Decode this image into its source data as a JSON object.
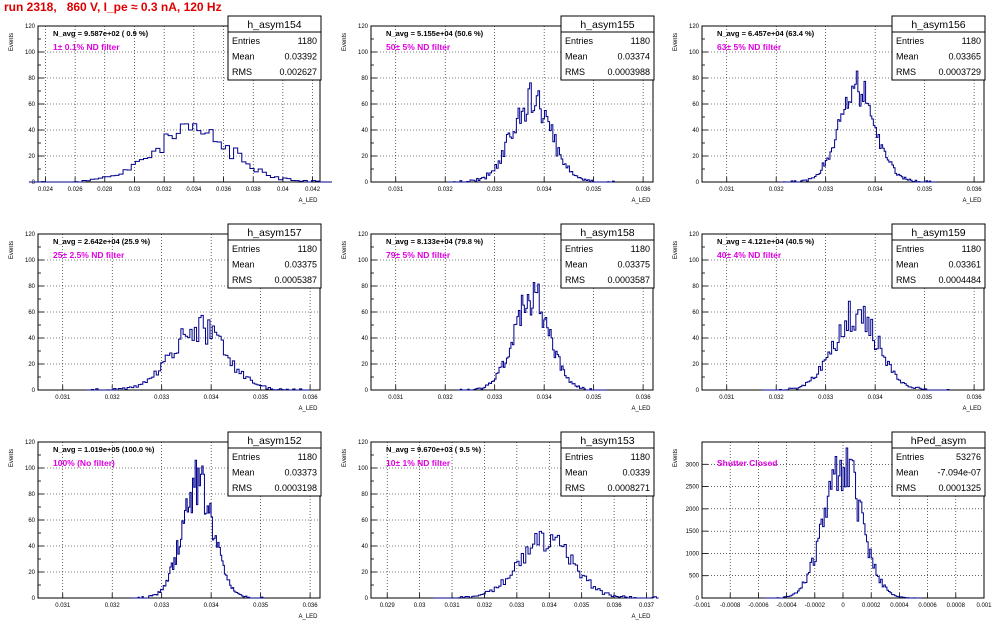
{
  "page": {
    "title": "run 2318,   860 V, I_pe ≈ 0.3 nA, 120 Hz"
  },
  "colors": {
    "hist": "#00008b",
    "title": "#e00000",
    "label": "#e000e0",
    "grid": "#000000"
  },
  "chart_data": [
    {
      "type": "bar",
      "name": "h_asym154",
      "annotation": "N_avg = 9.587e+02 ( 0.9 %)",
      "label": "1± 0.1% ND filter",
      "stats": [
        [
          "Entries",
          "1180"
        ],
        [
          "Mean",
          "0.03392"
        ],
        [
          "RMS",
          "0.002627"
        ]
      ],
      "xlim": [
        0.0235,
        0.0425
      ],
      "ylim": [
        0,
        120
      ],
      "xticks": [
        0.024,
        0.026,
        0.028,
        0.03,
        0.032,
        0.034,
        0.036,
        0.038,
        0.04,
        0.042
      ],
      "xticklabels": [
        "0.024",
        "0.026",
        "0.028",
        "0.03",
        "0.032",
        "0.034",
        "0.036",
        "0.038",
        "0.04",
        "0.042"
      ],
      "yticks": [
        0,
        10,
        20,
        30,
        40,
        50,
        60,
        70,
        80,
        90,
        100,
        110,
        120
      ],
      "yticklabels": [
        "0",
        "",
        "20",
        "",
        "40",
        "",
        "60",
        "",
        "80",
        "",
        "100",
        "",
        "120"
      ],
      "ylabel": "Events",
      "xlabel": "A_LED",
      "grid": true,
      "gen": {
        "mean": 0.03392,
        "rms": 0.002627,
        "peak": 42,
        "bins": 80
      }
    },
    {
      "type": "bar",
      "name": "h_asym155",
      "annotation": "N_avg = 5.155e+04 (50.6 %)",
      "label": "50± 5% ND filter",
      "stats": [
        [
          "Entries",
          "1180"
        ],
        [
          "Mean",
          "0.03374"
        ],
        [
          "RMS",
          "0.0003988"
        ]
      ],
      "xlim": [
        0.0305,
        0.0362
      ],
      "ylim": [
        0,
        120
      ],
      "xticks": [
        0.031,
        0.032,
        0.033,
        0.034,
        0.035,
        0.036
      ],
      "xticklabels": [
        "0.031",
        "0.032",
        "0.033",
        "0.034",
        "0.035",
        "0.036"
      ],
      "yticks": [
        0,
        10,
        20,
        30,
        40,
        50,
        60,
        70,
        80,
        90,
        100,
        110,
        120
      ],
      "yticklabels": [
        "0",
        "",
        "20",
        "",
        "40",
        "",
        "60",
        "",
        "80",
        "",
        "100",
        "",
        "120"
      ],
      "ylabel": "Events",
      "xlabel": "A_LED",
      "grid": true,
      "gen": {
        "mean": 0.03374,
        "rms": 0.0003988,
        "peak": 68,
        "bins": 100
      }
    },
    {
      "type": "bar",
      "name": "h_asym156",
      "annotation": "N_avg = 6.457e+04 (63.4 %)",
      "label": "63± 5% ND filter",
      "stats": [
        [
          "Entries",
          "1180"
        ],
        [
          "Mean",
          "0.03365"
        ],
        [
          "RMS",
          "0.0003729"
        ]
      ],
      "xlim": [
        0.0305,
        0.0362
      ],
      "ylim": [
        0,
        120
      ],
      "xticks": [
        0.031,
        0.032,
        0.033,
        0.034,
        0.035,
        0.036
      ],
      "xticklabels": [
        "0.031",
        "0.032",
        "0.033",
        "0.034",
        "0.035",
        "0.036"
      ],
      "yticks": [
        0,
        10,
        20,
        30,
        40,
        50,
        60,
        70,
        80,
        90,
        100,
        110,
        120
      ],
      "yticklabels": [
        "0",
        "",
        "20",
        "",
        "40",
        "",
        "60",
        "",
        "80",
        "",
        "100",
        "",
        "120"
      ],
      "ylabel": "Events",
      "xlabel": "A_LED",
      "grid": true,
      "gen": {
        "mean": 0.03365,
        "rms": 0.0003729,
        "peak": 76,
        "bins": 100
      }
    },
    {
      "type": "bar",
      "name": "h_asym157",
      "annotation": "N_avg = 2.642e+04 (25.9 %)",
      "label": "25± 2.5% ND filter",
      "stats": [
        [
          "Entries",
          "1180"
        ],
        [
          "Mean",
          "0.03375"
        ],
        [
          "RMS",
          "0.0005387"
        ]
      ],
      "xlim": [
        0.0305,
        0.0362
      ],
      "ylim": [
        0,
        120
      ],
      "xticks": [
        0.031,
        0.032,
        0.033,
        0.034,
        0.035,
        0.036
      ],
      "xticklabels": [
        "0.031",
        "0.032",
        "0.033",
        "0.034",
        "0.035",
        "0.036"
      ],
      "yticks": [
        0,
        10,
        20,
        30,
        40,
        50,
        60,
        70,
        80,
        90,
        100,
        110,
        120
      ],
      "yticklabels": [
        "0",
        "",
        "20",
        "",
        "40",
        "",
        "60",
        "",
        "80",
        "",
        "100",
        "",
        "120"
      ],
      "ylabel": "Events",
      "xlabel": "A_LED",
      "grid": true,
      "gen": {
        "mean": 0.03375,
        "rms": 0.0005387,
        "peak": 52,
        "bins": 100
      }
    },
    {
      "type": "bar",
      "name": "h_asym158",
      "annotation": "N_avg = 8.133e+04 (79.8 %)",
      "label": "79± 5% ND filter",
      "stats": [
        [
          "Entries",
          "1180"
        ],
        [
          "Mean",
          "0.03375"
        ],
        [
          "RMS",
          "0.0003587"
        ]
      ],
      "xlim": [
        0.0305,
        0.0362
      ],
      "ylim": [
        0,
        120
      ],
      "xticks": [
        0.031,
        0.032,
        0.033,
        0.034,
        0.035,
        0.036
      ],
      "xticklabels": [
        "0.031",
        "0.032",
        "0.033",
        "0.034",
        "0.035",
        "0.036"
      ],
      "yticks": [
        0,
        10,
        20,
        30,
        40,
        50,
        60,
        70,
        80,
        90,
        100,
        110,
        120
      ],
      "yticklabels": [
        "0",
        "",
        "20",
        "",
        "40",
        "",
        "60",
        "",
        "80",
        "",
        "100",
        "",
        "120"
      ],
      "ylabel": "Events",
      "xlabel": "A_LED",
      "grid": true,
      "gen": {
        "mean": 0.03375,
        "rms": 0.0003587,
        "peak": 80,
        "bins": 100
      }
    },
    {
      "type": "bar",
      "name": "h_asym159",
      "annotation": "N_avg = 4.121e+04 (40.5 %)",
      "label": "40± 4% ND filter",
      "stats": [
        [
          "Entries",
          "1180"
        ],
        [
          "Mean",
          "0.03361"
        ],
        [
          "RMS",
          "0.0004484"
        ]
      ],
      "xlim": [
        0.0305,
        0.0362
      ],
      "ylim": [
        0,
        120
      ],
      "xticks": [
        0.031,
        0.032,
        0.033,
        0.034,
        0.035,
        0.036
      ],
      "xticklabels": [
        "0.031",
        "0.032",
        "0.033",
        "0.034",
        "0.035",
        "0.036"
      ],
      "yticks": [
        0,
        10,
        20,
        30,
        40,
        50,
        60,
        70,
        80,
        90,
        100,
        110,
        120
      ],
      "yticklabels": [
        "0",
        "",
        "20",
        "",
        "40",
        "",
        "60",
        "",
        "80",
        "",
        "100",
        "",
        "120"
      ],
      "ylabel": "Events",
      "xlabel": "A_LED",
      "grid": true,
      "gen": {
        "mean": 0.03361,
        "rms": 0.0004484,
        "peak": 64,
        "bins": 100
      }
    },
    {
      "type": "bar",
      "name": "h_asym152",
      "annotation": "N_avg = 1.019e+05 (100.0 %)",
      "label": "100% (No filter)",
      "stats": [
        [
          "Entries",
          "1180"
        ],
        [
          "Mean",
          "0.03373"
        ],
        [
          "RMS",
          "0.0003198"
        ]
      ],
      "xlim": [
        0.0305,
        0.0362
      ],
      "ylim": [
        0,
        120
      ],
      "xticks": [
        0.031,
        0.032,
        0.033,
        0.034,
        0.035,
        0.036
      ],
      "xticklabels": [
        "0.031",
        "0.032",
        "0.033",
        "0.034",
        "0.035",
        "0.036"
      ],
      "yticks": [
        0,
        10,
        20,
        30,
        40,
        50,
        60,
        70,
        80,
        90,
        100,
        110,
        120
      ],
      "yticklabels": [
        "0",
        "",
        "20",
        "",
        "40",
        "",
        "60",
        "",
        "80",
        "",
        "100",
        "",
        "120"
      ],
      "ylabel": "Events",
      "xlabel": "A_LED",
      "grid": true,
      "gen": {
        "mean": 0.03373,
        "rms": 0.0003198,
        "peak": 96,
        "bins": 100
      }
    },
    {
      "type": "bar",
      "name": "h_asym153",
      "annotation": "N_avg = 9.670e+03 ( 9.5 %)",
      "label": "10± 1% ND filter",
      "stats": [
        [
          "Entries",
          "1180"
        ],
        [
          "Mean",
          "0.0339"
        ],
        [
          "RMS",
          "0.0008271"
        ]
      ],
      "xlim": [
        0.0285,
        0.0372
      ],
      "ylim": [
        0,
        120
      ],
      "xticks": [
        0.029,
        0.03,
        0.031,
        0.032,
        0.033,
        0.034,
        0.035,
        0.036,
        0.037
      ],
      "xticklabels": [
        "0.029",
        "0.03",
        "0.031",
        "0.032",
        "0.033",
        "0.034",
        "0.035",
        "0.036",
        "0.037"
      ],
      "yticks": [
        0,
        10,
        20,
        30,
        40,
        50,
        60,
        70,
        80,
        90,
        100,
        110,
        120
      ],
      "yticklabels": [
        "0",
        "",
        "20",
        "",
        "40",
        "",
        "60",
        "",
        "80",
        "",
        "100",
        "",
        "120"
      ],
      "ylabel": "Events",
      "xlabel": "A_LED",
      "grid": true,
      "gen": {
        "mean": 0.0339,
        "rms": 0.0008271,
        "peak": 48,
        "bins": 100
      }
    },
    {
      "type": "bar",
      "name": "hPed_asym",
      "annotation": "",
      "label": "Shutter Closed",
      "stats": [
        [
          "Entries",
          "53276"
        ],
        [
          "Mean",
          "-7.094e-07"
        ],
        [
          "RMS",
          "0.0001325"
        ]
      ],
      "xlim": [
        -0.001,
        0.001
      ],
      "ylim": [
        0,
        3500
      ],
      "xticks": [
        -0.001,
        -0.0008,
        -0.0006,
        -0.0004,
        -0.0002,
        0,
        0.0002,
        0.0004,
        0.0006,
        0.0008,
        0.001
      ],
      "xticklabels": [
        "-0.001",
        "-0.0008",
        "-0.0006",
        "-0.0004",
        "-0.0002",
        "0",
        "0.0002",
        "0.0004",
        "0.0006",
        "0.0008",
        "0.001"
      ],
      "yticks": [
        0,
        500,
        1000,
        1500,
        2000,
        2500,
        3000
      ],
      "yticklabels": [
        "0",
        "500",
        "1000",
        "1500",
        "2000",
        "2500",
        "3000"
      ],
      "ylabel": "Events",
      "xlabel": "",
      "grid": true,
      "gen": {
        "mean": 0.0,
        "rms": 0.0001325,
        "peak": 3200,
        "bins": 100
      }
    }
  ]
}
